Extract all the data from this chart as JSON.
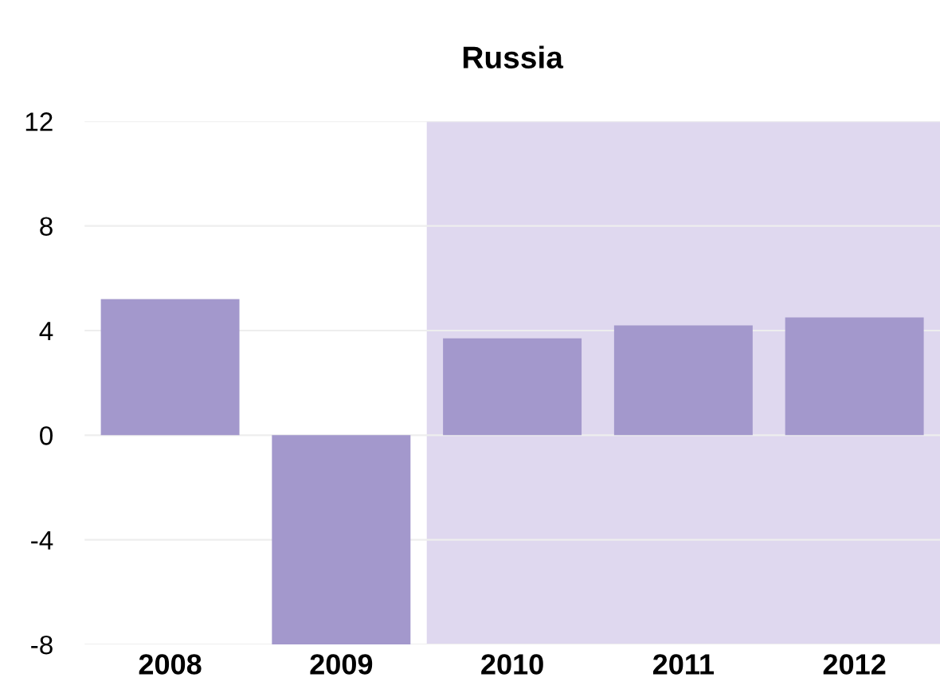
{
  "chart_data": {
    "type": "bar",
    "title": "Russia",
    "categories": [
      "2008",
      "2009",
      "2010",
      "2011",
      "2012"
    ],
    "values": [
      5.2,
      -8,
      3.7,
      4.2,
      4.5
    ],
    "color": "#a398cc",
    "ylim": [
      -8,
      12
    ],
    "yticks": [
      -8,
      -4,
      0,
      4,
      8,
      12
    ],
    "grid": "y",
    "bands": [
      {
        "axis": "x",
        "from": "2010",
        "to": "2012",
        "color": "#dfd8ef"
      }
    ]
  }
}
